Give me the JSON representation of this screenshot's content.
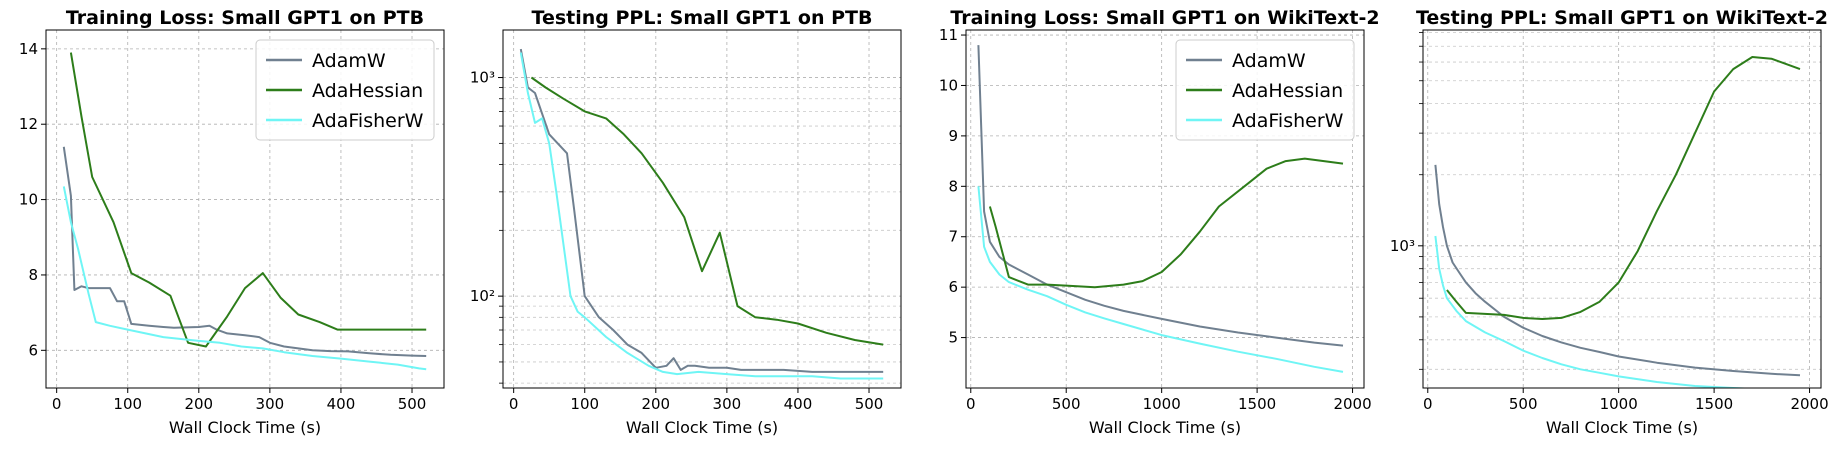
{
  "figure": {
    "type": "multi-panel line chart"
  },
  "chart_data": [
    {
      "type": "line",
      "title": "Training Loss: Small GPT1 on PTB",
      "xlabel": "Wall Clock Time (s)",
      "ylabel": "",
      "xlim": [
        -15,
        545
      ],
      "ylim": [
        5.0,
        14.5
      ],
      "yscale": "linear",
      "xticks": [
        0,
        100,
        200,
        300,
        400,
        500
      ],
      "yticks": [
        6,
        8,
        10,
        12,
        14
      ],
      "legend": "top-right",
      "series": [
        {
          "name": "AdamW",
          "color": "#708090",
          "x": [
            10,
            20,
            25,
            35,
            45,
            60,
            75,
            85,
            95,
            105,
            130,
            150,
            165,
            200,
            215,
            225,
            240,
            265,
            285,
            300,
            320,
            340,
            360,
            385,
            410,
            440,
            470,
            500,
            520
          ],
          "y": [
            11.4,
            10.1,
            7.6,
            7.7,
            7.65,
            7.65,
            7.65,
            7.3,
            7.3,
            6.7,
            6.65,
            6.62,
            6.6,
            6.62,
            6.65,
            6.55,
            6.45,
            6.4,
            6.35,
            6.2,
            6.1,
            6.05,
            6.0,
            5.98,
            5.97,
            5.92,
            5.88,
            5.86,
            5.85
          ]
        },
        {
          "name": "AdaHessian",
          "color": "#2d7d1a",
          "x": [
            20,
            35,
            50,
            80,
            105,
            130,
            160,
            185,
            210,
            240,
            265,
            290,
            315,
            340,
            370,
            395,
            450,
            520
          ],
          "y": [
            13.9,
            12.2,
            10.6,
            9.4,
            8.05,
            7.8,
            7.45,
            6.2,
            6.1,
            6.9,
            7.65,
            8.05,
            7.4,
            6.95,
            6.75,
            6.55,
            6.55,
            6.55
          ]
        },
        {
          "name": "AdaFisherW",
          "color": "#6ff5f5",
          "x": [
            10,
            20,
            30,
            45,
            55,
            75,
            100,
            125,
            150,
            175,
            200,
            230,
            260,
            290,
            320,
            360,
            400,
            440,
            480,
            510,
            520
          ],
          "y": [
            10.35,
            9.4,
            8.7,
            7.5,
            6.75,
            6.65,
            6.55,
            6.45,
            6.35,
            6.3,
            6.25,
            6.2,
            6.1,
            6.05,
            5.95,
            5.85,
            5.78,
            5.7,
            5.62,
            5.52,
            5.5
          ]
        }
      ]
    },
    {
      "type": "line",
      "title": "Testing PPL: Small GPT1 on PTB",
      "xlabel": "Wall Clock Time (s)",
      "ylabel": "",
      "xlim": [
        -15,
        545
      ],
      "ylim": [
        38,
        1650
      ],
      "yscale": "log",
      "xticks": [
        0,
        100,
        200,
        300,
        400,
        500
      ],
      "yticks": [
        100,
        1000
      ],
      "ytick_labels": [
        "10²",
        "10³"
      ],
      "minor_yticks": [
        40,
        50,
        60,
        70,
        80,
        90,
        200,
        300,
        400,
        500,
        600,
        700,
        800,
        900
      ],
      "legend": "none",
      "series": [
        {
          "name": "AdamW",
          "color": "#708090",
          "x": [
            10,
            20,
            30,
            50,
            75,
            85,
            100,
            120,
            140,
            160,
            180,
            200,
            215,
            225,
            235,
            245,
            255,
            275,
            300,
            320,
            350,
            380,
            420,
            460,
            500,
            520
          ],
          "y": [
            1350,
            900,
            850,
            550,
            450,
            250,
            100,
            80,
            70,
            60,
            55,
            47,
            48,
            52,
            46,
            48,
            48,
            47,
            47,
            46,
            46,
            46,
            45,
            45,
            45,
            45
          ]
        },
        {
          "name": "AdaHessian",
          "color": "#2d7d1a",
          "x": [
            25,
            45,
            70,
            100,
            130,
            155,
            180,
            210,
            240,
            265,
            290,
            315,
            340,
            370,
            400,
            440,
            480,
            520
          ],
          "y": [
            1000,
            900,
            800,
            700,
            650,
            550,
            450,
            330,
            230,
            130,
            195,
            90,
            80,
            78,
            75,
            68,
            63,
            60
          ]
        },
        {
          "name": "AdaFisherW",
          "color": "#6ff5f5",
          "x": [
            10,
            20,
            30,
            40,
            50,
            60,
            80,
            90,
            100,
            130,
            160,
            190,
            210,
            230,
            260,
            300,
            340,
            380,
            420,
            460,
            500,
            520
          ],
          "y": [
            1300,
            850,
            620,
            650,
            500,
            300,
            100,
            85,
            80,
            65,
            55,
            48,
            45,
            44,
            45,
            44,
            43,
            43,
            43,
            42,
            42,
            42
          ]
        }
      ]
    },
    {
      "type": "line",
      "title": "Training Loss: Small GPT1 on WikiText-2",
      "xlabel": "Wall Clock Time (s)",
      "ylabel": "",
      "xlim": [
        -25,
        2060
      ],
      "ylim": [
        4.0,
        11.1
      ],
      "yscale": "linear",
      "xticks": [
        0,
        500,
        1000,
        1500,
        2000
      ],
      "yticks": [
        5,
        6,
        7,
        8,
        9,
        10,
        11
      ],
      "legend": "top-right",
      "series": [
        {
          "name": "AdamW",
          "color": "#708090",
          "x": [
            40,
            70,
            100,
            150,
            200,
            300,
            400,
            500,
            600,
            700,
            800,
            900,
            1000,
            1200,
            1400,
            1600,
            1800,
            1950
          ],
          "y": [
            10.8,
            7.5,
            6.9,
            6.6,
            6.45,
            6.25,
            6.05,
            5.9,
            5.75,
            5.63,
            5.53,
            5.45,
            5.37,
            5.22,
            5.1,
            5.0,
            4.9,
            4.84
          ]
        },
        {
          "name": "AdaHessian",
          "color": "#2d7d1a",
          "x": [
            100,
            130,
            200,
            300,
            400,
            500,
            650,
            800,
            900,
            1000,
            1100,
            1200,
            1300,
            1450,
            1550,
            1650,
            1750,
            1850,
            1950
          ],
          "y": [
            7.6,
            7.2,
            6.2,
            6.05,
            6.05,
            6.03,
            6.0,
            6.05,
            6.12,
            6.3,
            6.65,
            7.1,
            7.6,
            8.05,
            8.35,
            8.5,
            8.55,
            8.5,
            8.45
          ]
        },
        {
          "name": "AdaFisherW",
          "color": "#6ff5f5",
          "x": [
            40,
            70,
            100,
            150,
            200,
            300,
            400,
            500,
            600,
            700,
            800,
            1000,
            1200,
            1400,
            1600,
            1800,
            1950
          ],
          "y": [
            8.0,
            6.8,
            6.5,
            6.25,
            6.1,
            5.95,
            5.82,
            5.65,
            5.5,
            5.38,
            5.27,
            5.05,
            4.88,
            4.72,
            4.58,
            4.42,
            4.32
          ]
        }
      ]
    },
    {
      "type": "line",
      "title": "Testing PPL: Small GPT1 on WikiText-2",
      "xlabel": "Wall Clock Time (s)",
      "ylabel": "",
      "xlim": [
        -25,
        2060
      ],
      "ylim": [
        250,
        8200
      ],
      "yscale": "log",
      "xticks": [
        0,
        500,
        1000,
        1500,
        2000
      ],
      "yticks": [
        1000
      ],
      "ytick_labels": [
        "10³"
      ],
      "minor_yticks": [
        300,
        400,
        500,
        600,
        700,
        800,
        900,
        2000,
        3000,
        4000,
        5000,
        6000,
        7000,
        8000
      ],
      "legend": "none",
      "series": [
        {
          "name": "AdamW",
          "color": "#708090",
          "x": [
            40,
            60,
            80,
            100,
            130,
            170,
            200,
            250,
            300,
            400,
            500,
            600,
            700,
            800,
            900,
            1000,
            1200,
            1400,
            1600,
            1800,
            1950
          ],
          "y": [
            2200,
            1500,
            1200,
            1000,
            850,
            760,
            700,
            630,
            580,
            500,
            450,
            415,
            390,
            370,
            355,
            340,
            320,
            305,
            295,
            287,
            283
          ]
        },
        {
          "name": "AdaHessian",
          "color": "#2d7d1a",
          "x": [
            100,
            150,
            200,
            300,
            400,
            500,
            600,
            700,
            800,
            900,
            1000,
            1100,
            1200,
            1300,
            1400,
            1500,
            1600,
            1700,
            1800,
            1950
          ],
          "y": [
            650,
            580,
            520,
            515,
            510,
            495,
            490,
            495,
            525,
            580,
            700,
            950,
            1400,
            2000,
            3000,
            4500,
            5600,
            6300,
            6200,
            5600
          ]
        },
        {
          "name": "AdaFisherW",
          "color": "#6ff5f5",
          "x": [
            40,
            60,
            80,
            100,
            150,
            200,
            300,
            400,
            500,
            600,
            700,
            800,
            900,
            1000,
            1200,
            1400,
            1600,
            1800,
            1950
          ],
          "y": [
            1100,
            800,
            680,
            600,
            530,
            480,
            430,
            395,
            360,
            335,
            315,
            300,
            290,
            280,
            265,
            255,
            250,
            246,
            245
          ]
        }
      ]
    }
  ]
}
